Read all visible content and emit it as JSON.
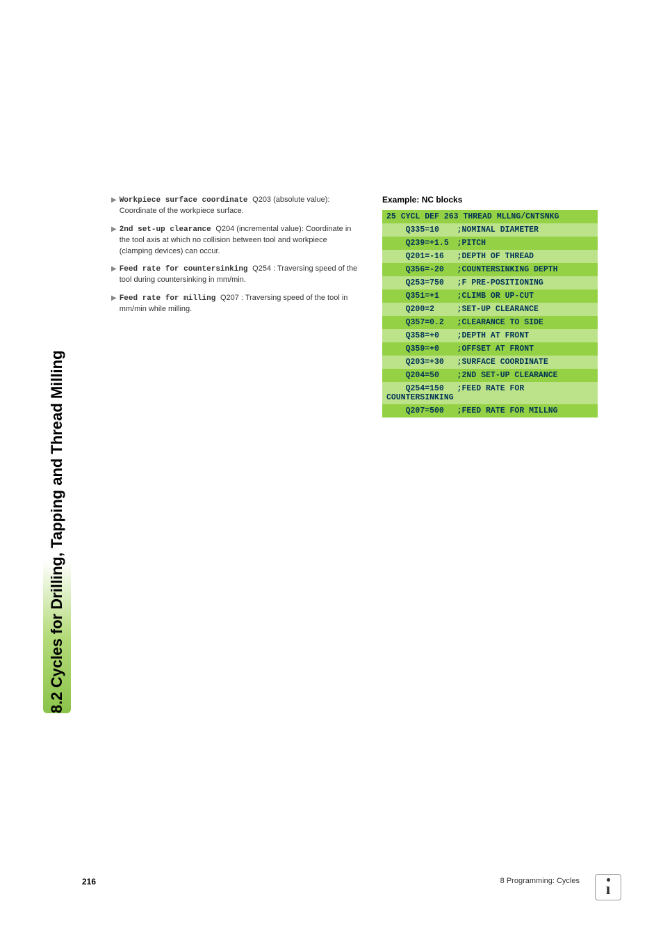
{
  "sideTab": "8.2 Cycles for Drilling, Tapping and Thread Milling",
  "params": [
    {
      "name": "Workpiece surface coordinate",
      "code": "Q203",
      "desc": "(absolute value): Coordinate of the workpiece surface."
    },
    {
      "name": "2nd set-up clearance",
      "code": "Q204",
      "desc": "(incremental value): Coordinate in the tool axis at which no collision between tool and workpiece (clamping devices) can occur."
    },
    {
      "name": "Feed rate for countersinking",
      "code": "Q254",
      "desc": ": Traversing speed of the tool during countersinking in mm/min."
    },
    {
      "name": "Feed rate for milling",
      "code": "Q207",
      "desc": ": Traversing speed of the tool in mm/min while milling."
    }
  ],
  "exampleTitle": "Example: NC blocks",
  "codeHeader": "25 CYCL DEF 263 THREAD MLLNG/CNTSNKG",
  "codeRows": [
    {
      "q": "Q335=10",
      "c": ";NOMINAL DIAMETER"
    },
    {
      "q": "Q239=+1.5",
      "c": ";PITCH"
    },
    {
      "q": "Q201=-16",
      "c": ";DEPTH OF THREAD"
    },
    {
      "q": "Q356=-20",
      "c": ";COUNTERSINKING DEPTH"
    },
    {
      "q": "Q253=750",
      "c": ";F PRE-POSITIONING"
    },
    {
      "q": "Q351=+1",
      "c": ";CLIMB OR UP-CUT"
    },
    {
      "q": "Q200=2",
      "c": ";SET-UP CLEARANCE"
    },
    {
      "q": "Q357=0.2",
      "c": ";CLEARANCE TO SIDE"
    },
    {
      "q": "Q358=+0",
      "c": ";DEPTH AT FRONT"
    },
    {
      "q": "Q359=+0",
      "c": ";OFFSET AT FRONT"
    },
    {
      "q": "Q203=+30",
      "c": ";SURFACE COORDINATE"
    },
    {
      "q": "Q204=50",
      "c": ";2ND SET-UP CLEARANCE"
    },
    {
      "q": "Q254=150",
      "c": ";FEED RATE FOR COUNTERSINKING"
    },
    {
      "q": "Q207=500",
      "c": ";FEED RATE FOR MILLNG"
    }
  ],
  "colors": {
    "codeOdd": "#94d145",
    "codeEven": "#bce38a",
    "codeText": "#003355"
  },
  "pageNum": "216",
  "footerText": "8 Programming: Cycles"
}
